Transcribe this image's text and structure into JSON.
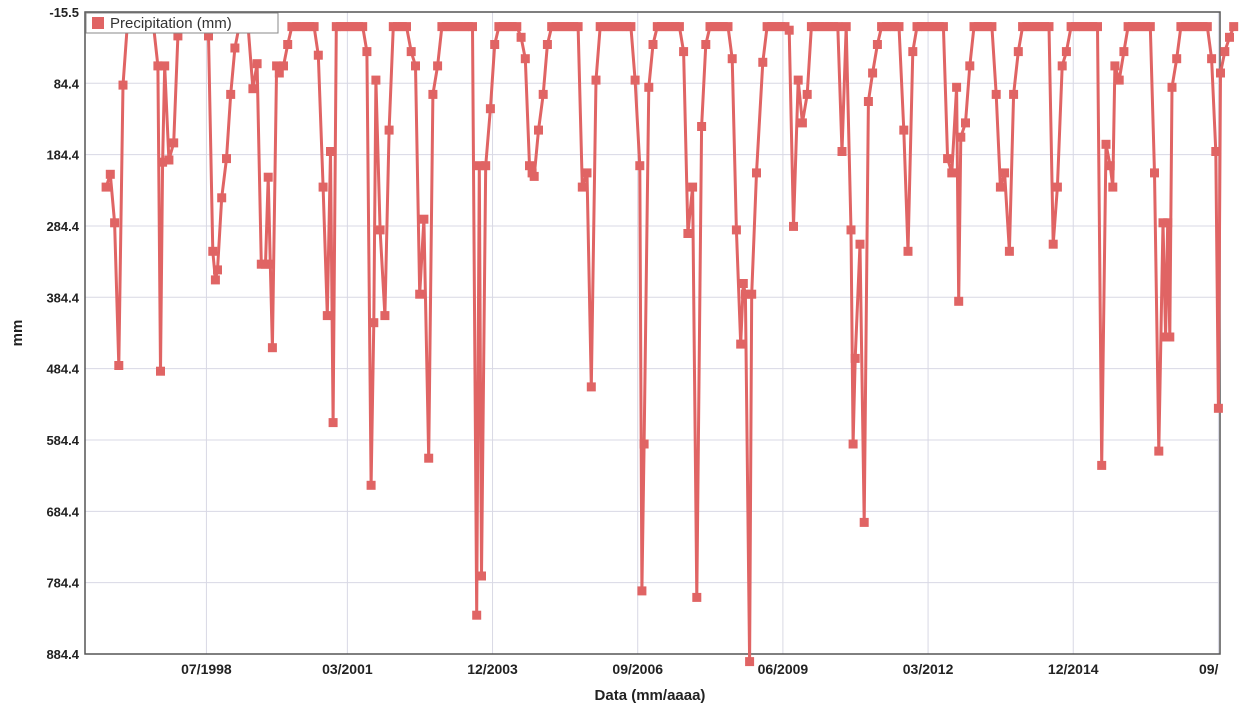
{
  "chart_data": {
    "type": "line",
    "title": "",
    "xlabel": "Data (mm/aaaa)",
    "ylabel": "mm",
    "y_inverted": true,
    "ylim": [
      -15.5,
      884.4
    ],
    "yticks": [
      "-15.5",
      "84.4",
      "184.4",
      "284.4",
      "384.4",
      "484.4",
      "584.4",
      "684.4",
      "784.4",
      "884.4"
    ],
    "xlim": [
      1996.2,
      2017.7
    ],
    "xticks": [
      {
        "label": "07/1998",
        "x": 1998.5
      },
      {
        "label": "03/2001",
        "x": 2001.17
      },
      {
        "label": "12/2003",
        "x": 2003.92
      },
      {
        "label": "09/2006",
        "x": 2006.67
      },
      {
        "label": "06/2009",
        "x": 2009.42
      },
      {
        "label": "03/2012",
        "x": 2012.17
      },
      {
        "label": "12/2014",
        "x": 2014.92
      },
      {
        "label": "09/",
        "x": 2017.67
      }
    ],
    "grid": true,
    "legend": "top-left",
    "color": "#e06464",
    "series": [
      {
        "name": "Precipitation (mm)",
        "values": [
          [
            1996.6,
            230
          ],
          [
            1996.68,
            212
          ],
          [
            1996.76,
            280
          ],
          [
            1996.84,
            480
          ],
          [
            1996.92,
            87
          ],
          [
            1997.0,
            5
          ],
          [
            1997.08,
            5
          ],
          [
            1997.17,
            5
          ],
          [
            1997.25,
            5
          ],
          [
            1997.33,
            5
          ],
          [
            1997.42,
            5
          ],
          [
            1997.5,
            5
          ],
          [
            1997.58,
            60
          ],
          [
            1997.63,
            488
          ],
          [
            1997.67,
            195
          ],
          [
            1997.71,
            60
          ],
          [
            1997.79,
            192
          ],
          [
            1997.88,
            168
          ],
          [
            1997.96,
            18
          ],
          [
            1998.04,
            5
          ],
          [
            1998.12,
            5
          ],
          [
            1998.21,
            5
          ],
          [
            1998.29,
            5
          ],
          [
            1998.38,
            5
          ],
          [
            1998.46,
            5
          ],
          [
            1998.54,
            18
          ],
          [
            1998.62,
            320
          ],
          [
            1998.67,
            360
          ],
          [
            1998.71,
            346
          ],
          [
            1998.79,
            245
          ],
          [
            1998.88,
            190
          ],
          [
            1998.96,
            100
          ],
          [
            1999.04,
            35
          ],
          [
            1999.12,
            5
          ],
          [
            1999.21,
            5
          ],
          [
            1999.29,
            5
          ],
          [
            1999.38,
            92
          ],
          [
            1999.46,
            57
          ],
          [
            1999.54,
            338
          ],
          [
            1999.62,
            338
          ],
          [
            1999.67,
            216
          ],
          [
            1999.71,
            338
          ],
          [
            1999.75,
            455
          ],
          [
            1999.83,
            60
          ],
          [
            1999.88,
            70
          ],
          [
            1999.96,
            60
          ],
          [
            2000.04,
            30
          ],
          [
            2000.12,
            5
          ],
          [
            2000.21,
            5
          ],
          [
            2000.29,
            5
          ],
          [
            2000.38,
            5
          ],
          [
            2000.46,
            5
          ],
          [
            2000.54,
            5
          ],
          [
            2000.62,
            45
          ],
          [
            2000.71,
            230
          ],
          [
            2000.79,
            410
          ],
          [
            2000.85,
            180
          ],
          [
            2000.9,
            560
          ],
          [
            2000.96,
            5
          ],
          [
            2001.04,
            5
          ],
          [
            2001.12,
            5
          ],
          [
            2001.21,
            5
          ],
          [
            2001.29,
            5
          ],
          [
            2001.38,
            5
          ],
          [
            2001.46,
            5
          ],
          [
            2001.54,
            40
          ],
          [
            2001.62,
            648
          ],
          [
            2001.67,
            420
          ],
          [
            2001.71,
            80
          ],
          [
            2001.79,
            290
          ],
          [
            2001.88,
            410
          ],
          [
            2001.96,
            150
          ],
          [
            2002.04,
            5
          ],
          [
            2002.12,
            5
          ],
          [
            2002.21,
            5
          ],
          [
            2002.29,
            5
          ],
          [
            2002.38,
            40
          ],
          [
            2002.46,
            60
          ],
          [
            2002.54,
            380
          ],
          [
            2002.62,
            275
          ],
          [
            2002.71,
            610
          ],
          [
            2002.79,
            100
          ],
          [
            2002.88,
            60
          ],
          [
            2002.96,
            5
          ],
          [
            2003.04,
            5
          ],
          [
            2003.12,
            5
          ],
          [
            2003.21,
            5
          ],
          [
            2003.29,
            5
          ],
          [
            2003.38,
            5
          ],
          [
            2003.46,
            5
          ],
          [
            2003.54,
            5
          ],
          [
            2003.62,
            830
          ],
          [
            2003.67,
            200
          ],
          [
            2003.71,
            775
          ],
          [
            2003.79,
            200
          ],
          [
            2003.88,
            120
          ],
          [
            2003.96,
            30
          ],
          [
            2004.04,
            5
          ],
          [
            2004.12,
            5
          ],
          [
            2004.21,
            5
          ],
          [
            2004.29,
            5
          ],
          [
            2004.38,
            5
          ],
          [
            2004.46,
            20
          ],
          [
            2004.54,
            50
          ],
          [
            2004.62,
            200
          ],
          [
            2004.67,
            210
          ],
          [
            2004.71,
            215
          ],
          [
            2004.79,
            150
          ],
          [
            2004.88,
            100
          ],
          [
            2004.96,
            30
          ],
          [
            2005.04,
            5
          ],
          [
            2005.12,
            5
          ],
          [
            2005.21,
            5
          ],
          [
            2005.29,
            5
          ],
          [
            2005.38,
            5
          ],
          [
            2005.46,
            5
          ],
          [
            2005.54,
            5
          ],
          [
            2005.62,
            230
          ],
          [
            2005.71,
            210
          ],
          [
            2005.79,
            510
          ],
          [
            2005.88,
            80
          ],
          [
            2005.96,
            5
          ],
          [
            2006.04,
            5
          ],
          [
            2006.12,
            5
          ],
          [
            2006.21,
            5
          ],
          [
            2006.29,
            5
          ],
          [
            2006.38,
            5
          ],
          [
            2006.46,
            5
          ],
          [
            2006.54,
            5
          ],
          [
            2006.62,
            80
          ],
          [
            2006.71,
            200
          ],
          [
            2006.75,
            796
          ],
          [
            2006.79,
            590
          ],
          [
            2006.88,
            90
          ],
          [
            2006.96,
            30
          ],
          [
            2007.04,
            5
          ],
          [
            2007.12,
            5
          ],
          [
            2007.21,
            5
          ],
          [
            2007.29,
            5
          ],
          [
            2007.38,
            5
          ],
          [
            2007.46,
            5
          ],
          [
            2007.54,
            40
          ],
          [
            2007.62,
            295
          ],
          [
            2007.71,
            230
          ],
          [
            2007.79,
            805
          ],
          [
            2007.88,
            145
          ],
          [
            2007.96,
            30
          ],
          [
            2008.04,
            5
          ],
          [
            2008.12,
            5
          ],
          [
            2008.21,
            5
          ],
          [
            2008.29,
            5
          ],
          [
            2008.38,
            5
          ],
          [
            2008.46,
            50
          ],
          [
            2008.54,
            290
          ],
          [
            2008.62,
            450
          ],
          [
            2008.67,
            365
          ],
          [
            2008.71,
            380
          ],
          [
            2008.79,
            895
          ],
          [
            2008.83,
            380
          ],
          [
            2008.92,
            210
          ],
          [
            2009.04,
            55
          ],
          [
            2009.12,
            5
          ],
          [
            2009.21,
            5
          ],
          [
            2009.29,
            5
          ],
          [
            2009.38,
            5
          ],
          [
            2009.46,
            5
          ],
          [
            2009.54,
            10
          ],
          [
            2009.62,
            285
          ],
          [
            2009.71,
            80
          ],
          [
            2009.79,
            140
          ],
          [
            2009.88,
            100
          ],
          [
            2009.96,
            5
          ],
          [
            2010.04,
            5
          ],
          [
            2010.12,
            5
          ],
          [
            2010.21,
            5
          ],
          [
            2010.29,
            5
          ],
          [
            2010.38,
            5
          ],
          [
            2010.46,
            5
          ],
          [
            2010.54,
            180
          ],
          [
            2010.62,
            5
          ],
          [
            2010.71,
            290
          ],
          [
            2010.75,
            590
          ],
          [
            2010.79,
            470
          ],
          [
            2010.88,
            310
          ],
          [
            2010.96,
            700
          ],
          [
            2011.04,
            110
          ],
          [
            2011.12,
            70
          ],
          [
            2011.21,
            30
          ],
          [
            2011.29,
            5
          ],
          [
            2011.38,
            5
          ],
          [
            2011.46,
            5
          ],
          [
            2011.54,
            5
          ],
          [
            2011.62,
            5
          ],
          [
            2011.71,
            150
          ],
          [
            2011.79,
            320
          ],
          [
            2011.88,
            40
          ],
          [
            2011.96,
            5
          ],
          [
            2012.04,
            5
          ],
          [
            2012.12,
            5
          ],
          [
            2012.21,
            5
          ],
          [
            2012.29,
            5
          ],
          [
            2012.38,
            5
          ],
          [
            2012.46,
            5
          ],
          [
            2012.54,
            190
          ],
          [
            2012.62,
            210
          ],
          [
            2012.71,
            90
          ],
          [
            2012.75,
            390
          ],
          [
            2012.79,
            160
          ],
          [
            2012.88,
            140
          ],
          [
            2012.96,
            60
          ],
          [
            2013.04,
            5
          ],
          [
            2013.12,
            5
          ],
          [
            2013.21,
            5
          ],
          [
            2013.29,
            5
          ],
          [
            2013.38,
            5
          ],
          [
            2013.46,
            100
          ],
          [
            2013.54,
            230
          ],
          [
            2013.62,
            210
          ],
          [
            2013.71,
            320
          ],
          [
            2013.79,
            100
          ],
          [
            2013.88,
            40
          ],
          [
            2013.96,
            5
          ],
          [
            2014.04,
            5
          ],
          [
            2014.12,
            5
          ],
          [
            2014.21,
            5
          ],
          [
            2014.29,
            5
          ],
          [
            2014.38,
            5
          ],
          [
            2014.46,
            5
          ],
          [
            2014.54,
            310
          ],
          [
            2014.62,
            230
          ],
          [
            2014.71,
            60
          ],
          [
            2014.79,
            40
          ],
          [
            2014.88,
            5
          ],
          [
            2014.96,
            5
          ],
          [
            2015.04,
            5
          ],
          [
            2015.12,
            5
          ],
          [
            2015.21,
            5
          ],
          [
            2015.29,
            5
          ],
          [
            2015.38,
            5
          ],
          [
            2015.46,
            620
          ],
          [
            2015.54,
            170
          ],
          [
            2015.62,
            200
          ],
          [
            2015.67,
            230
          ],
          [
            2015.71,
            60
          ],
          [
            2015.79,
            80
          ],
          [
            2015.88,
            40
          ],
          [
            2015.96,
            5
          ],
          [
            2016.04,
            5
          ],
          [
            2016.12,
            5
          ],
          [
            2016.21,
            5
          ],
          [
            2016.29,
            5
          ],
          [
            2016.38,
            5
          ],
          [
            2016.46,
            210
          ],
          [
            2016.54,
            600
          ],
          [
            2016.62,
            280
          ],
          [
            2016.67,
            440
          ],
          [
            2016.71,
            280
          ],
          [
            2016.75,
            440
          ],
          [
            2016.79,
            90
          ],
          [
            2016.88,
            50
          ],
          [
            2016.96,
            5
          ],
          [
            2017.04,
            5
          ],
          [
            2017.12,
            5
          ],
          [
            2017.21,
            5
          ],
          [
            2017.29,
            5
          ],
          [
            2017.38,
            5
          ],
          [
            2017.46,
            5
          ],
          [
            2017.54,
            50
          ],
          [
            2017.62,
            180
          ],
          [
            2017.67,
            540
          ],
          [
            2017.71,
            70
          ],
          [
            2017.79,
            40
          ],
          [
            2017.88,
            20
          ],
          [
            2017.96,
            5
          ]
        ]
      }
    ]
  }
}
